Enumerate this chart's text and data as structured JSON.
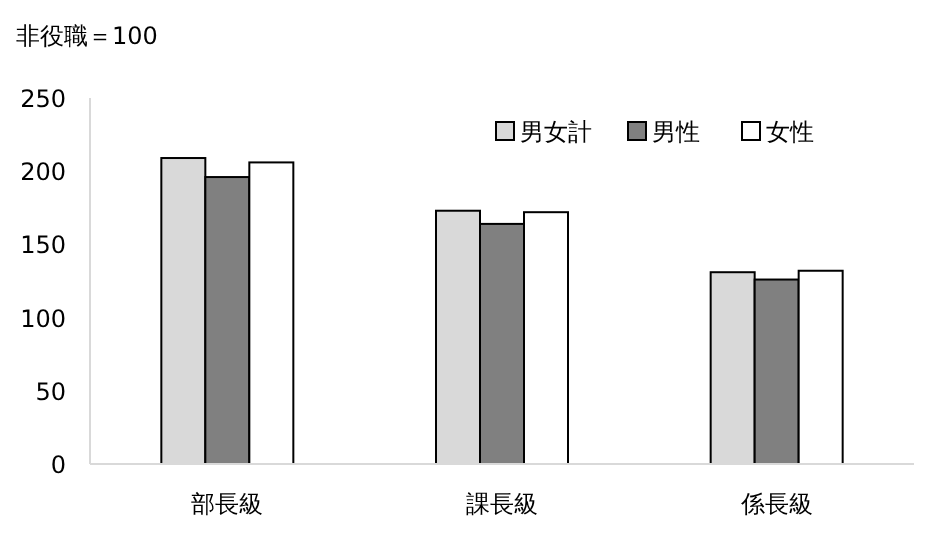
{
  "chart_data": {
    "type": "bar",
    "ylabel": "非役職＝100",
    "categories": [
      "部長級",
      "課長級",
      "係長級"
    ],
    "series": [
      {
        "name": "男女計",
        "color": "#d9d9d9",
        "values": [
          209,
          173,
          131
        ]
      },
      {
        "name": "男性",
        "color": "#808080",
        "values": [
          196,
          164,
          126
        ]
      },
      {
        "name": "女性",
        "color": "#ffffff",
        "values": [
          206,
          172,
          132
        ]
      }
    ],
    "ylim": [
      0,
      250
    ],
    "yticks": [
      0,
      50,
      100,
      150,
      200,
      250
    ],
    "legend": "top right",
    "grid": false
  }
}
